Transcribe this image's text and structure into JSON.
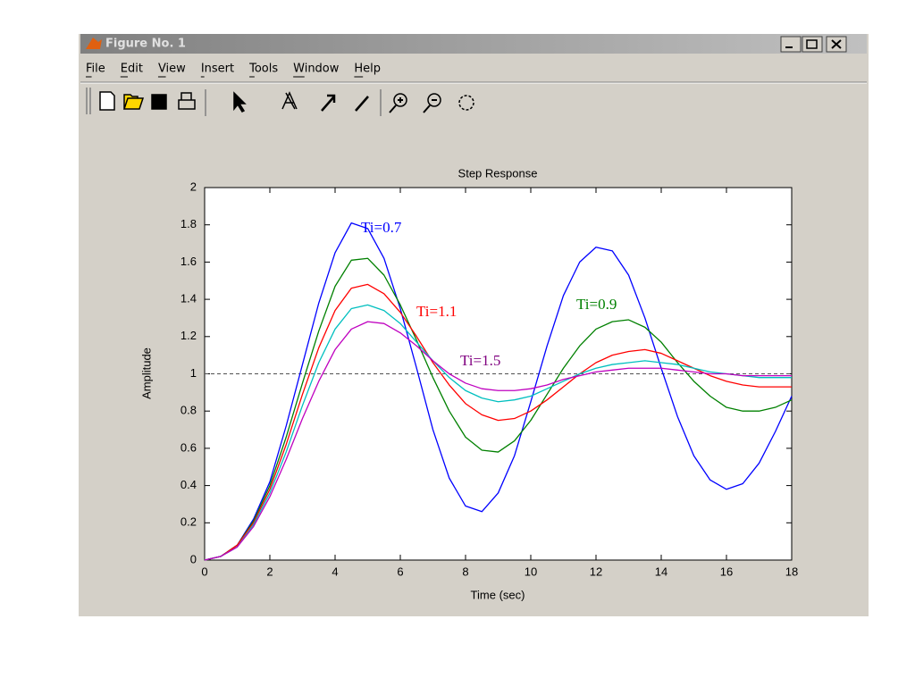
{
  "window": {
    "title": "Figure No. 1",
    "menu": [
      "File",
      "Edit",
      "View",
      "Insert",
      "Tools",
      "Window",
      "Help"
    ]
  },
  "chart_data": {
    "type": "line",
    "title": "Step Response",
    "xlabel": "Time (sec)",
    "ylabel": "Amplitude",
    "x": [
      0,
      0.5,
      1,
      1.5,
      2,
      2.5,
      3,
      3.5,
      4,
      4.5,
      5,
      5.5,
      6,
      6.5,
      7,
      7.5,
      8,
      8.5,
      9,
      9.5,
      10,
      10.5,
      11,
      11.5,
      12,
      12.5,
      13,
      13.5,
      14,
      14.5,
      15,
      15.5,
      16,
      16.5,
      17,
      17.5,
      18
    ],
    "series": [
      {
        "name": "Ti=0.7",
        "color": "#0000ff",
        "values": [
          0,
          0.02,
          0.08,
          0.22,
          0.42,
          0.72,
          1.05,
          1.38,
          1.65,
          1.81,
          1.78,
          1.62,
          1.35,
          1.03,
          0.7,
          0.44,
          0.29,
          0.26,
          0.36,
          0.56,
          0.85,
          1.15,
          1.42,
          1.6,
          1.68,
          1.66,
          1.53,
          1.3,
          1.03,
          0.77,
          0.56,
          0.43,
          0.38,
          0.41,
          0.52,
          0.69,
          0.88
        ]
      },
      {
        "name": "Ti=0.9",
        "color": "#008000",
        "values": [
          0,
          0.02,
          0.08,
          0.21,
          0.4,
          0.66,
          0.95,
          1.23,
          1.47,
          1.61,
          1.62,
          1.53,
          1.37,
          1.18,
          0.98,
          0.8,
          0.66,
          0.59,
          0.58,
          0.64,
          0.75,
          0.89,
          1.03,
          1.15,
          1.24,
          1.28,
          1.29,
          1.25,
          1.17,
          1.06,
          0.96,
          0.88,
          0.82,
          0.8,
          0.8,
          0.82,
          0.86
        ]
      },
      {
        "name": "Ti=1.1",
        "color": "#ff0000",
        "values": [
          0,
          0.02,
          0.08,
          0.2,
          0.38,
          0.62,
          0.89,
          1.14,
          1.34,
          1.46,
          1.48,
          1.43,
          1.33,
          1.2,
          1.06,
          0.94,
          0.84,
          0.78,
          0.75,
          0.76,
          0.8,
          0.86,
          0.93,
          1.0,
          1.06,
          1.1,
          1.12,
          1.13,
          1.11,
          1.07,
          1.03,
          0.99,
          0.96,
          0.94,
          0.93,
          0.93,
          0.93
        ]
      },
      {
        "color": "#00bfbf",
        "values": [
          0,
          0.02,
          0.07,
          0.19,
          0.36,
          0.58,
          0.83,
          1.06,
          1.24,
          1.35,
          1.37,
          1.34,
          1.27,
          1.17,
          1.07,
          0.98,
          0.91,
          0.87,
          0.85,
          0.86,
          0.88,
          0.92,
          0.96,
          1.0,
          1.03,
          1.05,
          1.06,
          1.07,
          1.06,
          1.05,
          1.03,
          1.01,
          1.0,
          0.99,
          0.98,
          0.98,
          0.98
        ]
      },
      {
        "name": "Ti=1.5",
        "color": "#bf00bf",
        "values": [
          0,
          0.02,
          0.07,
          0.18,
          0.34,
          0.54,
          0.76,
          0.96,
          1.13,
          1.24,
          1.28,
          1.27,
          1.22,
          1.15,
          1.07,
          1.0,
          0.95,
          0.92,
          0.91,
          0.91,
          0.92,
          0.94,
          0.97,
          0.99,
          1.01,
          1.02,
          1.03,
          1.03,
          1.03,
          1.02,
          1.01,
          1.0,
          1.0,
          0.99,
          0.99,
          0.99,
          0.99
        ]
      }
    ],
    "reference_line": 1,
    "xlim": [
      0,
      18
    ],
    "xticks": [
      0,
      2,
      4,
      6,
      8,
      10,
      12,
      14,
      16,
      18
    ],
    "ylim": [
      0,
      2
    ],
    "yticks": [
      0,
      0.2,
      0.4,
      0.6,
      0.8,
      1,
      1.2,
      1.4,
      1.6,
      1.8,
      2
    ],
    "grid": false
  }
}
